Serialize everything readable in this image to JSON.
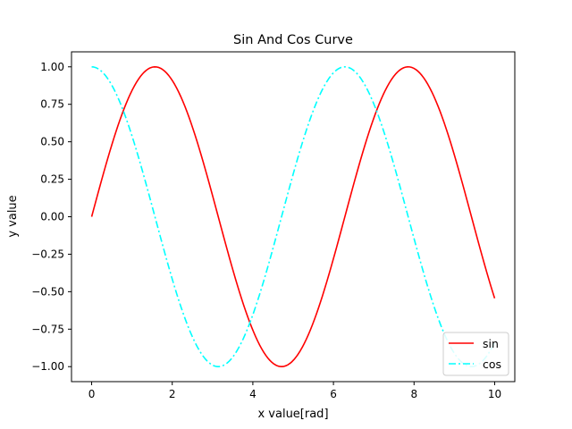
{
  "chart_data": {
    "type": "line",
    "title": "Sin And Cos Curve",
    "xlabel": "x value[rad]",
    "ylabel": "y value",
    "xlim": [
      -0.5,
      10.5
    ],
    "ylim": [
      -1.1,
      1.1
    ],
    "x_range": [
      0,
      10
    ],
    "num_points": 200,
    "xticks": [
      0,
      2,
      4,
      6,
      8,
      10
    ],
    "xtick_labels": [
      "0",
      "2",
      "4",
      "6",
      "8",
      "10"
    ],
    "yticks": [
      1.0,
      0.75,
      0.5,
      0.25,
      0.0,
      -0.25,
      -0.5,
      -0.75,
      -1.0
    ],
    "ytick_labels": [
      "1.00",
      "0.75",
      "0.50",
      "0.25",
      "0.00",
      "−0.25",
      "−0.50",
      "−0.75",
      "−1.00"
    ],
    "grid": false,
    "legend_position": "bottom-right",
    "series": [
      {
        "name": "sin",
        "function": "sin",
        "color": "#ff0000",
        "style": "solid"
      },
      {
        "name": "cos",
        "function": "cos",
        "color": "#00ffff",
        "style": "dashdot"
      }
    ]
  }
}
